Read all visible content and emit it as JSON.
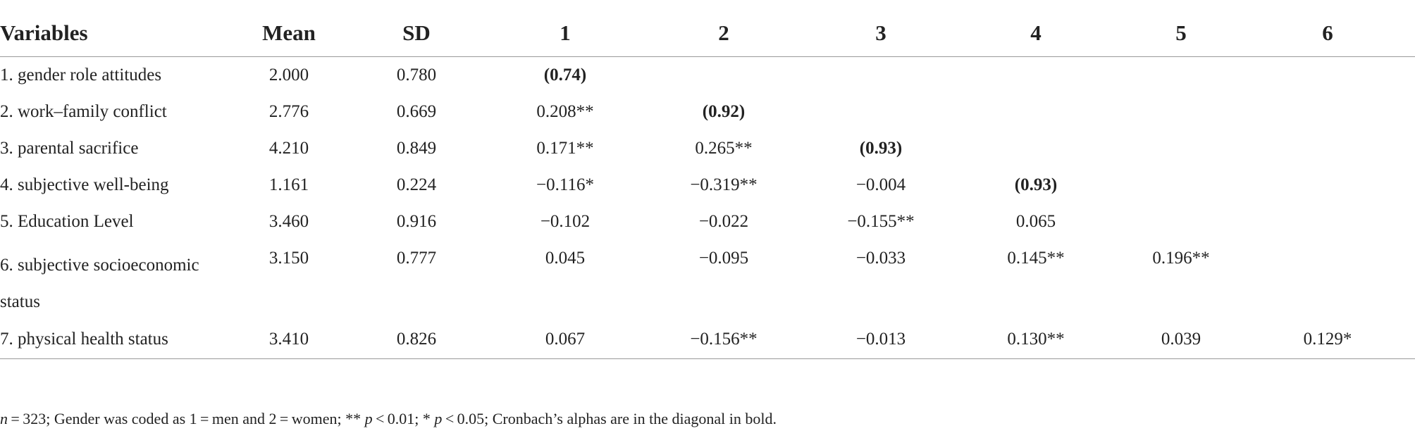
{
  "table": {
    "headers": [
      "Variables",
      "Mean",
      "SD",
      "1",
      "2",
      "3",
      "4",
      "5",
      "6"
    ],
    "rows": [
      {
        "variable": "1. gender role attitudes",
        "mean": "2.000",
        "sd": "0.780",
        "c1": "(0.74)",
        "c2": "",
        "c3": "",
        "c4": "",
        "c5": "",
        "c6": ""
      },
      {
        "variable": "2. work–family conflict",
        "mean": "2.776",
        "sd": "0.669",
        "c1": "0.208**",
        "c2": "(0.92)",
        "c3": "",
        "c4": "",
        "c5": "",
        "c6": ""
      },
      {
        "variable": "3. parental sacrifice",
        "mean": "4.210",
        "sd": "0.849",
        "c1": "0.171**",
        "c2": "0.265**",
        "c3": "(0.93)",
        "c4": "",
        "c5": "",
        "c6": ""
      },
      {
        "variable": "4. subjective well-being",
        "mean": "1.161",
        "sd": "0.224",
        "c1": "−0.116*",
        "c2": "−0.319**",
        "c3": "−0.004",
        "c4": "(0.93)",
        "c5": "",
        "c6": ""
      },
      {
        "variable": "5. Education Level",
        "mean": "3.460",
        "sd": "0.916",
        "c1": "−0.102",
        "c2": "−0.022",
        "c3": "−0.155**",
        "c4": "0.065",
        "c5": "",
        "c6": ""
      },
      {
        "variable": "6. subjective socioeconomic status",
        "mean": "3.150",
        "sd": "0.777",
        "c1": "0.045",
        "c2": "−0.095",
        "c3": "−0.033",
        "c4": "0.145**",
        "c5": "0.196**",
        "c6": ""
      },
      {
        "variable": "7. physical health status",
        "mean": "3.410",
        "sd": "0.826",
        "c1": "0.067",
        "c2": "−0.156**",
        "c3": "−0.013",
        "c4": "0.130**",
        "c5": "0.039",
        "c6": "0.129*"
      }
    ]
  },
  "note": {
    "n_symbol": "n",
    "text": " = 323; Gender was coded as 1 = men and 2 = women; ** ",
    "p1_symbol": "p",
    "p1_text": " < 0.01; * ",
    "p2_symbol": "p",
    "p2_text": " < 0.05; Cronbach’s alphas are in the diagonal in bold."
  }
}
